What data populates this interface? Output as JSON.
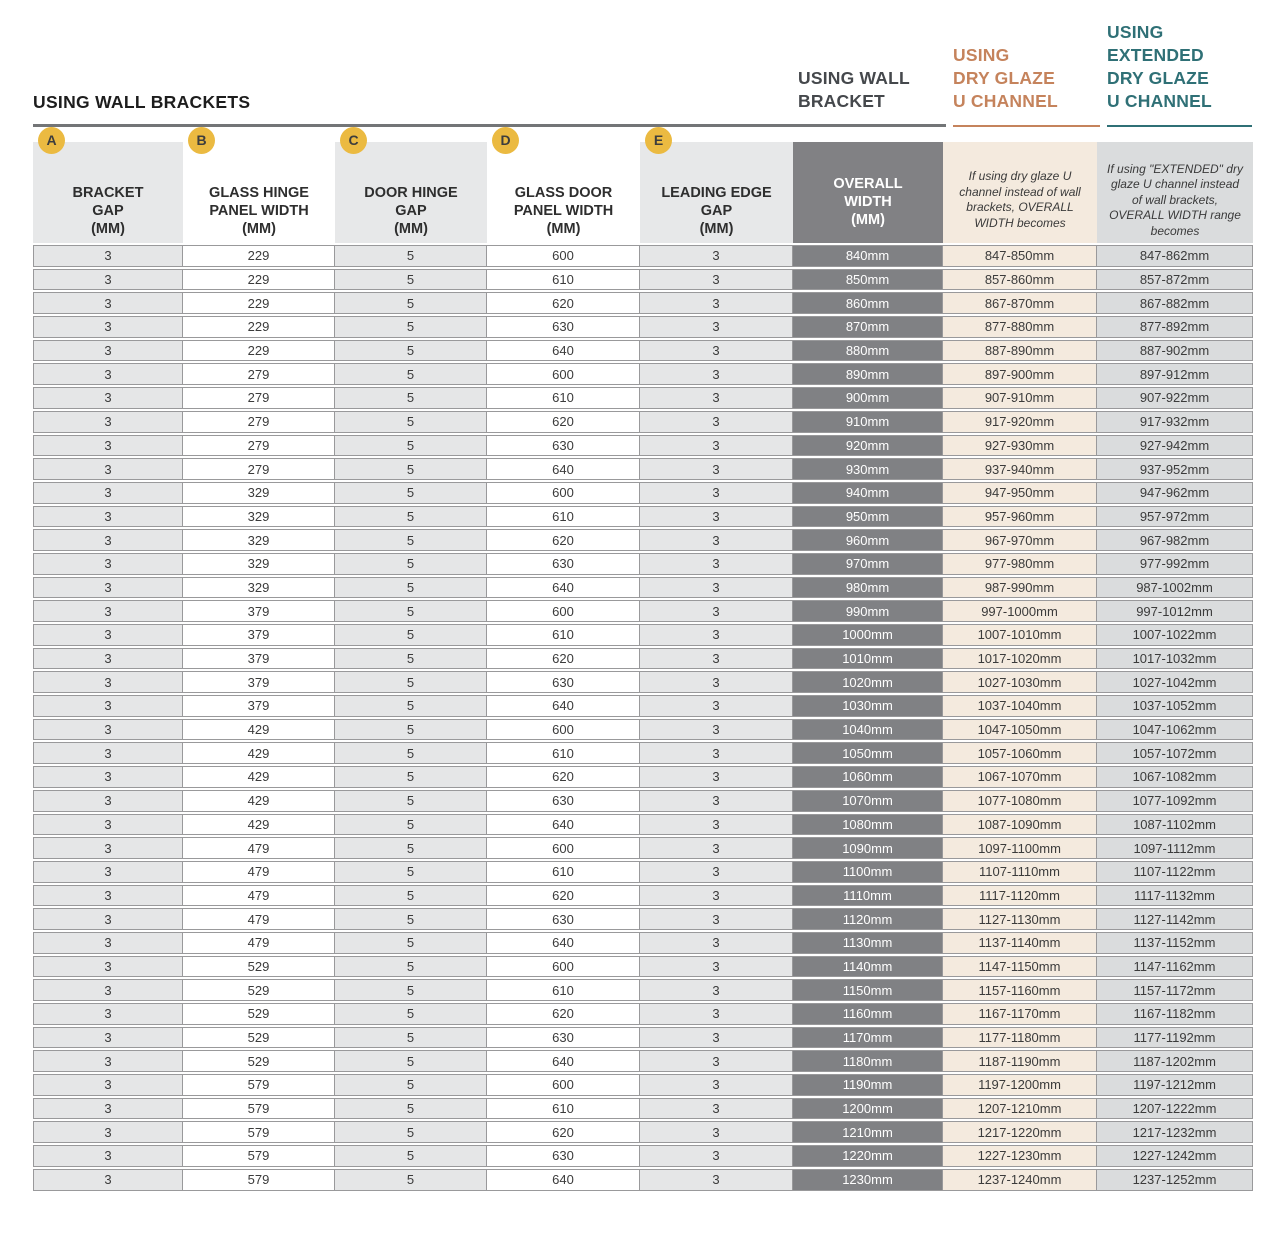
{
  "page": {
    "title": "USING WALL BRACKETS"
  },
  "group_headers": {
    "wall_bracket": "USING WALL\nBRACKET",
    "dry_glaze": "USING\nDRY GLAZE\nU CHANNEL",
    "extended_dry_glaze": "USING\nEXTENDED\nDRY GLAZE\nU CHANNEL"
  },
  "colors": {
    "accent_orange": "#c5835c",
    "accent_teal": "#2f7076",
    "badge_yellow": "#ebba41",
    "dark_header_cell": "#818184",
    "gray_cell": "#e5e6e7",
    "beige_cell": "#f4eade",
    "extended_gray_cell": "#dadcdd"
  },
  "table": {
    "columns": [
      {
        "badge": "A",
        "label": "BRACKET\nGAP\n(MM)"
      },
      {
        "badge": "B",
        "label": "GLASS HINGE\nPANEL WIDTH\n(MM)"
      },
      {
        "badge": "C",
        "label": "DOOR HINGE\nGAP\n(MM)"
      },
      {
        "badge": "D",
        "label": "GLASS DOOR\nPANEL WIDTH\n(MM)"
      },
      {
        "badge": "E",
        "label": "LEADING EDGE\nGAP\n(MM)"
      },
      {
        "label": "OVERALL\nWIDTH\n(MM)"
      },
      {
        "label": "If using dry glaze U channel instead of wall brackets, OVERALL WIDTH becomes"
      },
      {
        "label": "If using \"EXTENDED\" dry glaze U channel instead of wall brackets, OVERALL WIDTH range becomes"
      }
    ],
    "rows": [
      [
        "3",
        "229",
        "5",
        "600",
        "3",
        "840mm",
        "847-850mm",
        "847-862mm"
      ],
      [
        "3",
        "229",
        "5",
        "610",
        "3",
        "850mm",
        "857-860mm",
        "857-872mm"
      ],
      [
        "3",
        "229",
        "5",
        "620",
        "3",
        "860mm",
        "867-870mm",
        "867-882mm"
      ],
      [
        "3",
        "229",
        "5",
        "630",
        "3",
        "870mm",
        "877-880mm",
        "877-892mm"
      ],
      [
        "3",
        "229",
        "5",
        "640",
        "3",
        "880mm",
        "887-890mm",
        "887-902mm"
      ],
      [
        "3",
        "279",
        "5",
        "600",
        "3",
        "890mm",
        "897-900mm",
        "897-912mm"
      ],
      [
        "3",
        "279",
        "5",
        "610",
        "3",
        "900mm",
        "907-910mm",
        "907-922mm"
      ],
      [
        "3",
        "279",
        "5",
        "620",
        "3",
        "910mm",
        "917-920mm",
        "917-932mm"
      ],
      [
        "3",
        "279",
        "5",
        "630",
        "3",
        "920mm",
        "927-930mm",
        "927-942mm"
      ],
      [
        "3",
        "279",
        "5",
        "640",
        "3",
        "930mm",
        "937-940mm",
        "937-952mm"
      ],
      [
        "3",
        "329",
        "5",
        "600",
        "3",
        "940mm",
        "947-950mm",
        "947-962mm"
      ],
      [
        "3",
        "329",
        "5",
        "610",
        "3",
        "950mm",
        "957-960mm",
        "957-972mm"
      ],
      [
        "3",
        "329",
        "5",
        "620",
        "3",
        "960mm",
        "967-970mm",
        "967-982mm"
      ],
      [
        "3",
        "329",
        "5",
        "630",
        "3",
        "970mm",
        "977-980mm",
        "977-992mm"
      ],
      [
        "3",
        "329",
        "5",
        "640",
        "3",
        "980mm",
        "987-990mm",
        "987-1002mm"
      ],
      [
        "3",
        "379",
        "5",
        "600",
        "3",
        "990mm",
        "997-1000mm",
        "997-1012mm"
      ],
      [
        "3",
        "379",
        "5",
        "610",
        "3",
        "1000mm",
        "1007-1010mm",
        "1007-1022mm"
      ],
      [
        "3",
        "379",
        "5",
        "620",
        "3",
        "1010mm",
        "1017-1020mm",
        "1017-1032mm"
      ],
      [
        "3",
        "379",
        "5",
        "630",
        "3",
        "1020mm",
        "1027-1030mm",
        "1027-1042mm"
      ],
      [
        "3",
        "379",
        "5",
        "640",
        "3",
        "1030mm",
        "1037-1040mm",
        "1037-1052mm"
      ],
      [
        "3",
        "429",
        "5",
        "600",
        "3",
        "1040mm",
        "1047-1050mm",
        "1047-1062mm"
      ],
      [
        "3",
        "429",
        "5",
        "610",
        "3",
        "1050mm",
        "1057-1060mm",
        "1057-1072mm"
      ],
      [
        "3",
        "429",
        "5",
        "620",
        "3",
        "1060mm",
        "1067-1070mm",
        "1067-1082mm"
      ],
      [
        "3",
        "429",
        "5",
        "630",
        "3",
        "1070mm",
        "1077-1080mm",
        "1077-1092mm"
      ],
      [
        "3",
        "429",
        "5",
        "640",
        "3",
        "1080mm",
        "1087-1090mm",
        "1087-1102mm"
      ],
      [
        "3",
        "479",
        "5",
        "600",
        "3",
        "1090mm",
        "1097-1100mm",
        "1097-1112mm"
      ],
      [
        "3",
        "479",
        "5",
        "610",
        "3",
        "1100mm",
        "1107-1110mm",
        "1107-1122mm"
      ],
      [
        "3",
        "479",
        "5",
        "620",
        "3",
        "1110mm",
        "1117-1120mm",
        "1117-1132mm"
      ],
      [
        "3",
        "479",
        "5",
        "630",
        "3",
        "1120mm",
        "1127-1130mm",
        "1127-1142mm"
      ],
      [
        "3",
        "479",
        "5",
        "640",
        "3",
        "1130mm",
        "1137-1140mm",
        "1137-1152mm"
      ],
      [
        "3",
        "529",
        "5",
        "600",
        "3",
        "1140mm",
        "1147-1150mm",
        "1147-1162mm"
      ],
      [
        "3",
        "529",
        "5",
        "610",
        "3",
        "1150mm",
        "1157-1160mm",
        "1157-1172mm"
      ],
      [
        "3",
        "529",
        "5",
        "620",
        "3",
        "1160mm",
        "1167-1170mm",
        "1167-1182mm"
      ],
      [
        "3",
        "529",
        "5",
        "630",
        "3",
        "1170mm",
        "1177-1180mm",
        "1177-1192mm"
      ],
      [
        "3",
        "529",
        "5",
        "640",
        "3",
        "1180mm",
        "1187-1190mm",
        "1187-1202mm"
      ],
      [
        "3",
        "579",
        "5",
        "600",
        "3",
        "1190mm",
        "1197-1200mm",
        "1197-1212mm"
      ],
      [
        "3",
        "579",
        "5",
        "610",
        "3",
        "1200mm",
        "1207-1210mm",
        "1207-1222mm"
      ],
      [
        "3",
        "579",
        "5",
        "620",
        "3",
        "1210mm",
        "1217-1220mm",
        "1217-1232mm"
      ],
      [
        "3",
        "579",
        "5",
        "630",
        "3",
        "1220mm",
        "1227-1230mm",
        "1227-1242mm"
      ],
      [
        "3",
        "579",
        "5",
        "640",
        "3",
        "1230mm",
        "1237-1240mm",
        "1237-1252mm"
      ]
    ]
  }
}
